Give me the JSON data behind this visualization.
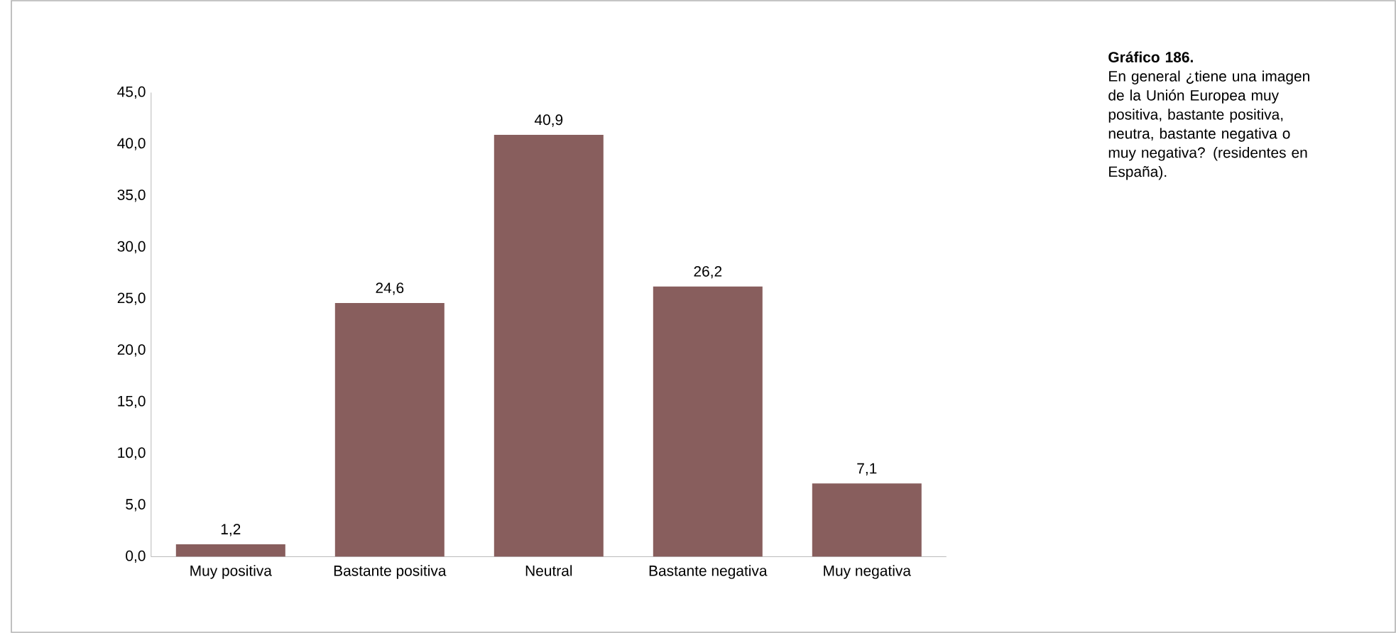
{
  "chart_data": {
    "type": "bar",
    "title": "Gráfico 186.",
    "subtitle": "En general ¿tiene una imagen de la Unión Europea muy positiva, bastante positiva, neutra, bastante negativa o muy negativa? (residentes en España).",
    "categories": [
      "Muy positiva",
      "Bastante positiva",
      "Neutral",
      "Bastante negativa",
      "Muy negativa"
    ],
    "values": [
      1.2,
      24.6,
      40.9,
      26.2,
      7.1
    ],
    "value_labels": [
      "1,2",
      "24,6",
      "40,9",
      "26,2",
      "7,1"
    ],
    "color": "#885e5d",
    "ylim": [
      0,
      45
    ],
    "yticks": [
      {
        "value": 0,
        "label": "0,0"
      },
      {
        "value": 5,
        "label": "5,0"
      },
      {
        "value": 10,
        "label": "10,0"
      },
      {
        "value": 15,
        "label": "15,0"
      },
      {
        "value": 20,
        "label": "20,0"
      },
      {
        "value": 25,
        "label": "25,0"
      },
      {
        "value": 30,
        "label": "30,0"
      },
      {
        "value": 35,
        "label": "35,0"
      },
      {
        "value": 40,
        "label": "40,0"
      },
      {
        "value": 45,
        "label": "45,0"
      }
    ],
    "grid": false
  }
}
